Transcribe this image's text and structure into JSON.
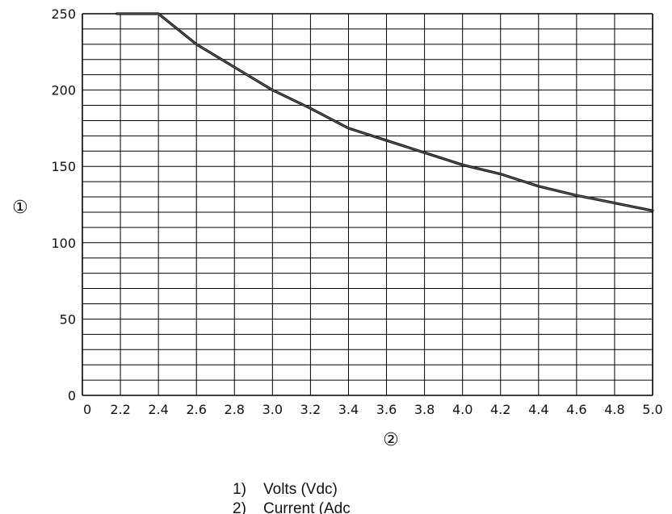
{
  "chart_data": {
    "type": "line",
    "x_ticks": [
      "0",
      "2.2",
      "2.4",
      "2.6",
      "2.8",
      "3.0",
      "3.2",
      "3.4",
      "3.6",
      "3.8",
      "4.0",
      "4.2",
      "4.4",
      "4.6",
      "4.8",
      "5.0"
    ],
    "y_ticks": [
      "0",
      "50",
      "100",
      "150",
      "200",
      "250"
    ],
    "ylim": [
      0,
      250
    ],
    "y_minor_step": 10,
    "grid": true,
    "series": [
      {
        "x": [
          2.0,
          2.2,
          2.4,
          2.6,
          2.8,
          3.0,
          3.2,
          3.4,
          3.6,
          3.8,
          4.0,
          4.2,
          4.4,
          4.6,
          4.8,
          5.0
        ],
        "values": [
          250,
          250,
          250,
          230,
          215,
          200,
          188,
          175,
          167,
          159,
          151,
          145,
          137,
          131,
          126,
          121
        ],
        "color": "#111111"
      }
    ],
    "ylabel_symbol": "①",
    "xlabel_symbol": "②",
    "legend": [
      {
        "num": "1)",
        "text": "Volts (Vdc)"
      },
      {
        "num": "2)",
        "text": "Current (Adc"
      }
    ]
  }
}
